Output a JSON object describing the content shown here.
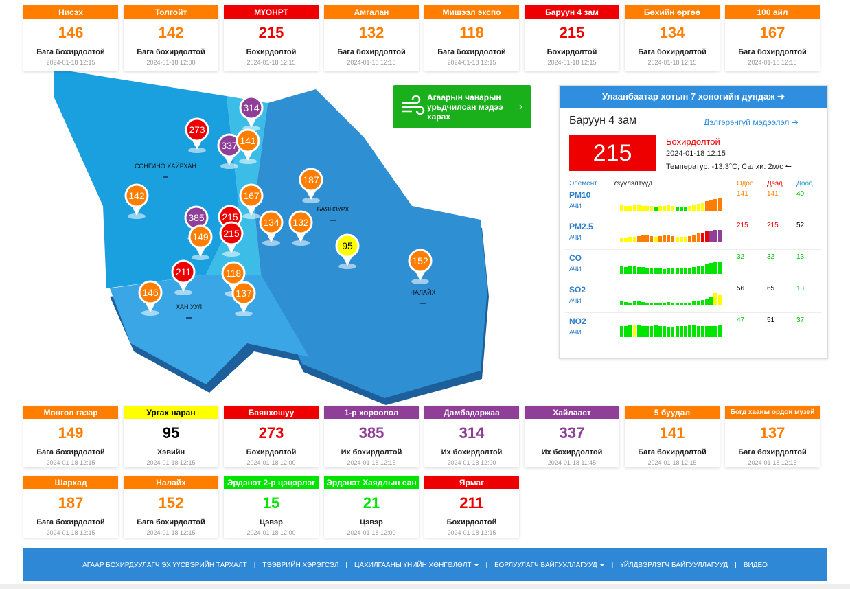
{
  "top_stations": [
    {
      "name": "Нисэх",
      "aqi": 146,
      "status": "Бага бохирдолтой",
      "time": "2024-01-18 12:15",
      "color": "#ff7e00"
    },
    {
      "name": "Толгойт",
      "aqi": 142,
      "status": "Бага бохирдолтой",
      "time": "2024-01-18 12:00",
      "color": "#ff7e00"
    },
    {
      "name": "МҮОНРТ",
      "aqi": 215,
      "status": "Бохирдолтой",
      "time": "2024-01-18 12:15",
      "color": "#ee0000"
    },
    {
      "name": "Амгалан",
      "aqi": 132,
      "status": "Бага бохирдолтой",
      "time": "2024-01-18 12:15",
      "color": "#ff7e00"
    },
    {
      "name": "Мишээл экспо",
      "aqi": 118,
      "status": "Бага бохирдолтой",
      "time": "2024-01-18 12:15",
      "color": "#ff7e00"
    },
    {
      "name": "Баруун 4 зам",
      "aqi": 215,
      "status": "Бохирдолтой",
      "time": "2024-01-18 12:15",
      "color": "#ee0000"
    },
    {
      "name": "Бөхийн өргөө",
      "aqi": 134,
      "status": "Бага бохирдолтой",
      "time": "2024-01-18 12:15",
      "color": "#ff7e00"
    },
    {
      "name": "100 айл",
      "aqi": 167,
      "status": "Бага бохирдолтой",
      "time": "2024-01-18 12:15",
      "color": "#ff7e00"
    }
  ],
  "bottom_stations": [
    {
      "name": "Монгол газар",
      "aqi": 149,
      "status": "Бага бохирдолтой",
      "time": "2024-01-18 12:15",
      "color": "#ff7e00"
    },
    {
      "name": "Ургах наран",
      "aqi": 95,
      "status": "Хэвийн",
      "time": "2024-01-18 12:15",
      "color": "#ffff00"
    },
    {
      "name": "Баянхошуу",
      "aqi": 273,
      "status": "Бохирдолтой",
      "time": "2024-01-18 12:00",
      "color": "#ee0000"
    },
    {
      "name": "1-р хороолол",
      "aqi": 385,
      "status": "Их бохирдолтой",
      "time": "2024-01-18 12:15",
      "color": "#8f3f97"
    },
    {
      "name": "Дамбадаржаа",
      "aqi": 314,
      "status": "Их бохирдолтой",
      "time": "2024-01-18 12:00",
      "color": "#8f3f97"
    },
    {
      "name": "Хайлааст",
      "aqi": 337,
      "status": "Их бохирдолтой",
      "time": "2024-01-18 11:45",
      "color": "#8f3f97"
    },
    {
      "name": "5 буудал",
      "aqi": 141,
      "status": "Бага бохирдолтой",
      "time": "2024-01-18 12:15",
      "color": "#ff7e00"
    },
    {
      "name": "Богд хааны ордон музей",
      "aqi": 137,
      "status": "Бага бохирдолтой",
      "time": "2024-01-18 12:15",
      "color": "#ff7e00"
    },
    {
      "name": "Шархад",
      "aqi": 187,
      "status": "Бага бохирдолтой",
      "time": "2024-01-18 12:15",
      "color": "#ff7e00"
    },
    {
      "name": "Налайх",
      "aqi": 152,
      "status": "Бага бохирдолтой",
      "time": "2024-01-18 12:15",
      "color": "#ff7e00"
    },
    {
      "name": "Эрдэнэт 2-р цэцэрлэг",
      "aqi": 15,
      "status": "Цэвэр",
      "time": "2024-01-18 12:00",
      "color": "#00e400"
    },
    {
      "name": "Эрдэнэт Хаядлын сан",
      "aqi": 21,
      "status": "Цэвэр",
      "time": "2024-01-18 12:00",
      "color": "#00e400"
    },
    {
      "name": "Ярмаг",
      "aqi": 211,
      "status": "Бохирдолтой",
      "time": "2024-01-18 12:15",
      "color": "#ee0000"
    }
  ],
  "map": {
    "districts": [
      "СОНГИНО ХАЙРХАН",
      "БАЯНЗҮРХ",
      "НАЛАЙХ",
      "ХАН УУЛ"
    ],
    "markers": [
      {
        "value": 314,
        "color": "#8f3f97"
      },
      {
        "value": 273,
        "color": "#ee0000"
      },
      {
        "value": 337,
        "color": "#8f3f97"
      },
      {
        "value": 141,
        "color": "#ff7e00"
      },
      {
        "value": 142,
        "color": "#ff7e00"
      },
      {
        "value": 187,
        "color": "#ff7e00"
      },
      {
        "value": 167,
        "color": "#ff7e00"
      },
      {
        "value": 385,
        "color": "#8f3f97"
      },
      {
        "value": 215,
        "color": "#ee0000"
      },
      {
        "value": 215,
        "color": "#ee0000"
      },
      {
        "value": 134,
        "color": "#ff7e00"
      },
      {
        "value": 132,
        "color": "#ff7e00"
      },
      {
        "value": 149,
        "color": "#ff7e00"
      },
      {
        "value": 95,
        "color": "#ffff00"
      },
      {
        "value": 152,
        "color": "#ff7e00"
      },
      {
        "value": 211,
        "color": "#ee0000"
      },
      {
        "value": 118,
        "color": "#ff7e00"
      },
      {
        "value": 146,
        "color": "#ff7e00"
      },
      {
        "value": 137,
        "color": "#ff7e00"
      }
    ],
    "forecast_button": "Агаарын чанарын урьдчилсан мэдээ харах"
  },
  "panel": {
    "header": "Улаанбаатар хотын 7 хоногийн дундаж",
    "station": "Баруун 4 зам",
    "details_link": "Дэлгэрэнгүй мэдээлэл",
    "aqi": 215,
    "status": "Бохирдолтой",
    "color": "#ee0000",
    "time": "2024-01-18 12:15",
    "weather": "Температур: -13.3°C; Салхи: 2м/с",
    "columns": [
      "Элемент",
      "Үзүүлэлтүүд",
      "Одоо",
      "Дээд",
      "Доод"
    ],
    "scale": [
      {
        "max": 50,
        "color": "#00e400"
      },
      {
        "max": 100,
        "color": "#ffff00"
      },
      {
        "max": 150,
        "color": "#ff7e00"
      },
      {
        "max": 200,
        "color": "#ee0000"
      },
      {
        "max": 500,
        "color": "#8f3f97"
      }
    ],
    "rows": [
      {
        "element": "PM10",
        "unit": "АЧИ",
        "now": 141,
        "max": 141,
        "min": 40,
        "colors": [
          "#ff7e00",
          "#ff7e00",
          "#00c000"
        ],
        "history": [
          60,
          55,
          58,
          62,
          60,
          58,
          55,
          52,
          50,
          55,
          58,
          60,
          55,
          50,
          45,
          48,
          52,
          60,
          75,
          90,
          110,
          125,
          135,
          141
        ]
      },
      {
        "element": "PM2.5",
        "unit": "АЧИ",
        "now": 215,
        "max": 215,
        "min": 52,
        "colors": [
          "#ee0000",
          "#ee0000",
          "#000000"
        ],
        "history": [
          70,
          80,
          90,
          100,
          110,
          120,
          115,
          110,
          100,
          105,
          115,
          120,
          110,
          100,
          95,
          100,
          110,
          130,
          150,
          170,
          190,
          205,
          210,
          215
        ]
      },
      {
        "element": "CO",
        "unit": "АЧИ",
        "now": 32,
        "max": 32,
        "min": 13,
        "colors": [
          "#00c000",
          "#00c000",
          "#00c000"
        ],
        "history": [
          20,
          18,
          22,
          20,
          18,
          17,
          16,
          15,
          15,
          14,
          13,
          14,
          15,
          16,
          15,
          14,
          15,
          18,
          20,
          22,
          25,
          28,
          30,
          32
        ]
      },
      {
        "element": "SO2",
        "unit": "АЧИ",
        "now": 56,
        "max": 65,
        "min": 13,
        "colors": [
          "#000000",
          "#000000",
          "#00c000"
        ],
        "history": [
          20,
          18,
          16,
          22,
          20,
          18,
          15,
          14,
          13,
          15,
          16,
          18,
          15,
          14,
          13,
          14,
          16,
          20,
          25,
          30,
          35,
          45,
          65,
          56
        ]
      },
      {
        "element": "NO2",
        "unit": "АЧИ",
        "now": 47,
        "max": 51,
        "min": 37,
        "colors": [
          "#00c000",
          "#000000",
          "#00c000"
        ],
        "history": [
          45,
          46,
          48,
          51,
          47,
          44,
          45,
          46,
          47,
          45,
          44,
          43,
          42,
          44,
          45,
          46,
          47,
          48,
          46,
          45,
          44,
          45,
          46,
          47
        ]
      }
    ]
  },
  "footer_nav": [
    {
      "label": "АГААР БОХИРДУУЛАГЧ ЭХ ҮҮСВЭРИЙН ТАРХАЛТ"
    },
    {
      "label": "ТЭЭВРИЙН ХЭРЭГСЭЛ"
    },
    {
      "label": "ЦАХИЛГААНЫ ҮНИЙН ХӨНГӨЛӨЛТ",
      "dropdown": true
    },
    {
      "label": "БОРЛУУЛАГЧ БАЙГУУЛЛАГУУД",
      "dropdown": true
    },
    {
      "label": "ҮЙЛДВЭРЛЭГЧ БАЙГУУЛЛАГУУД"
    },
    {
      "label": "ВИДЕО"
    }
  ]
}
